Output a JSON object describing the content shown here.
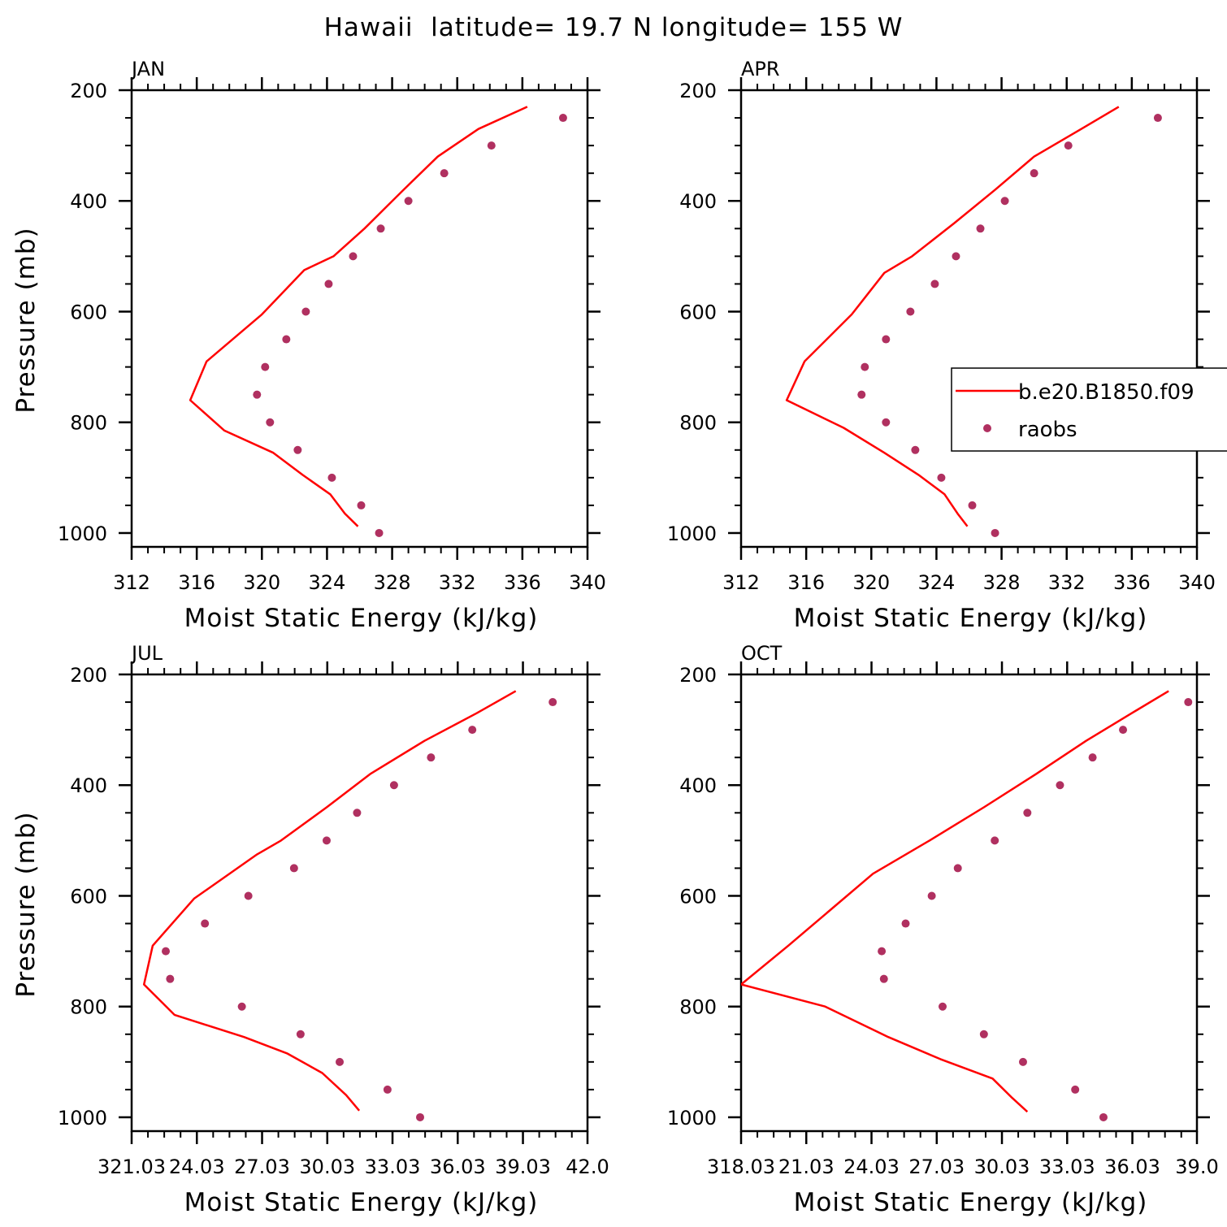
{
  "figure": {
    "title": "Hawaii  latitude= 19.7 N longitude= 155 W",
    "legend": {
      "model_label": "b.e20.B1850.f09",
      "obs_label": "raobs",
      "model_color": "#ff0000",
      "obs_color": "#b03060"
    }
  },
  "chart_data": [
    {
      "type": "line",
      "title": "JAN",
      "xlabel": "Moist Static Energy (kJ/kg)",
      "ylabel": "Pressure (mb)",
      "xlim": [
        312,
        340
      ],
      "x_ticks": [
        312,
        316,
        320,
        324,
        328,
        332,
        336,
        340
      ],
      "x_tick_labels": [
        "312",
        "316",
        "320",
        "324",
        "328",
        "332",
        "336",
        "340"
      ],
      "x_minor_step": 1,
      "ylim": [
        1025,
        200
      ],
      "y_ticks": [
        200,
        400,
        600,
        800,
        1000
      ],
      "y_tick_labels": [
        "200",
        "400",
        "600",
        "800",
        "1000"
      ],
      "y_minor_step": 50,
      "legend": false,
      "series": [
        {
          "name": "b.e20.B1850.f09",
          "kind": "line",
          "color": "#ff0000",
          "x": [
            336.3,
            333.3,
            330.8,
            328.7,
            326.3,
            324.4,
            322.6,
            320.0,
            316.6,
            315.6,
            317.7,
            320.7,
            322.5,
            324.2,
            325.1,
            325.9
          ],
          "y": [
            230,
            270,
            320,
            380,
            450,
            500,
            525,
            605,
            690,
            760,
            815,
            855,
            895,
            930,
            965,
            988
          ]
        },
        {
          "name": "raobs",
          "kind": "points",
          "color": "#b03060",
          "x": [
            338.5,
            334.1,
            331.2,
            329.0,
            327.3,
            325.6,
            324.1,
            322.7,
            321.5,
            320.2,
            319.7,
            320.5,
            322.2,
            324.3,
            326.1,
            327.2
          ],
          "y": [
            250,
            300,
            350,
            400,
            450,
            500,
            550,
            600,
            650,
            700,
            750,
            800,
            850,
            900,
            950,
            1000
          ]
        }
      ]
    },
    {
      "type": "line",
      "title": "APR",
      "xlabel": "Moist Static Energy (kJ/kg)",
      "ylabel": "",
      "xlim": [
        312,
        340
      ],
      "x_ticks": [
        312,
        316,
        320,
        324,
        328,
        332,
        336,
        340
      ],
      "x_tick_labels": [
        "312",
        "316",
        "320",
        "324",
        "328",
        "332",
        "336",
        "340"
      ],
      "x_minor_step": 1,
      "ylim": [
        1025,
        200
      ],
      "y_ticks": [
        200,
        400,
        600,
        800,
        1000
      ],
      "y_tick_labels": [
        "200",
        "400",
        "600",
        "800",
        "1000"
      ],
      "y_minor_step": 50,
      "legend": true,
      "series": [
        {
          "name": "b.e20.B1850.f09",
          "kind": "line",
          "color": "#ff0000",
          "x": [
            335.2,
            332.9,
            330.0,
            327.6,
            325.1,
            322.5,
            320.8,
            318.8,
            315.9,
            314.8,
            318.3,
            320.8,
            322.9,
            324.5,
            325.3,
            325.9
          ],
          "y": [
            230,
            270,
            320,
            380,
            440,
            500,
            530,
            605,
            690,
            760,
            810,
            855,
            895,
            930,
            965,
            988
          ]
        },
        {
          "name": "raobs",
          "kind": "points",
          "color": "#b03060",
          "x": [
            337.6,
            332.1,
            330.0,
            328.2,
            326.7,
            325.2,
            323.9,
            322.4,
            320.9,
            319.6,
            319.4,
            320.9,
            322.7,
            324.3,
            326.2,
            327.6
          ],
          "y": [
            250,
            300,
            350,
            400,
            450,
            500,
            550,
            600,
            650,
            700,
            750,
            800,
            850,
            900,
            950,
            1000
          ]
        }
      ]
    },
    {
      "type": "line",
      "title": "JUL",
      "xlabel": "Moist Static Energy (kJ/kg)",
      "ylabel": "Pressure (mb)",
      "xlim": [
        321.03,
        342.0
      ],
      "x_ticks": [
        321.03,
        324.03,
        327.03,
        330.03,
        333.03,
        336.03,
        339.03,
        342.0
      ],
      "x_tick_labels": [
        "321.03",
        "24.03",
        "27.03",
        "30.03",
        "33.03",
        "36.03",
        "39.03",
        "42.0"
      ],
      "x_minor_step": 0.75,
      "ylim": [
        1025,
        200
      ],
      "y_ticks": [
        200,
        400,
        600,
        800,
        1000
      ],
      "y_tick_labels": [
        "200",
        "400",
        "600",
        "800",
        "1000"
      ],
      "y_minor_step": 50,
      "legend": false,
      "series": [
        {
          "name": "b.e20.B1850.f09",
          "kind": "line",
          "color": "#ff0000",
          "x": [
            338.7,
            336.9,
            334.5,
            332.0,
            330.0,
            327.9,
            326.8,
            323.9,
            322.0,
            321.6,
            323.0,
            326.2,
            328.2,
            329.8,
            330.9,
            331.5
          ],
          "y": [
            230,
            270,
            320,
            380,
            440,
            500,
            525,
            605,
            690,
            760,
            815,
            855,
            885,
            920,
            960,
            988
          ]
        },
        {
          "name": "raobs",
          "kind": "points",
          "color": "#b03060",
          "x": [
            340.4,
            336.7,
            334.8,
            333.1,
            331.4,
            330.0,
            328.5,
            326.4,
            324.4,
            322.6,
            322.8,
            326.1,
            328.8,
            330.6,
            332.8,
            334.3
          ],
          "y": [
            250,
            300,
            350,
            400,
            450,
            500,
            550,
            600,
            650,
            700,
            750,
            800,
            850,
            900,
            950,
            1000
          ]
        }
      ]
    },
    {
      "type": "line",
      "title": "OCT",
      "xlabel": "Moist Static Energy (kJ/kg)",
      "ylabel": "",
      "xlim": [
        318.03,
        339.0
      ],
      "x_ticks": [
        318.03,
        321.03,
        324.03,
        327.03,
        330.03,
        333.03,
        336.03,
        339.0
      ],
      "x_tick_labels": [
        "318.03",
        "21.03",
        "24.03",
        "27.03",
        "30.03",
        "33.03",
        "36.03",
        "39.0"
      ],
      "x_minor_step": 0.75,
      "ylim": [
        1025,
        200
      ],
      "y_ticks": [
        200,
        400,
        600,
        800,
        1000
      ],
      "y_tick_labels": [
        "200",
        "400",
        "600",
        "800",
        "1000"
      ],
      "y_minor_step": 50,
      "legend": false,
      "series": [
        {
          "name": "b.e20.B1850.f09",
          "kind": "line",
          "color": "#ff0000",
          "x": [
            337.7,
            336.0,
            333.9,
            331.6,
            329.2,
            326.7,
            324.1,
            320.2,
            318.03,
            321.9,
            324.8,
            327.2,
            329.6,
            330.5,
            331.2
          ],
          "y": [
            230,
            270,
            320,
            380,
            440,
            500,
            560,
            690,
            760,
            800,
            855,
            895,
            930,
            965,
            990
          ]
        },
        {
          "name": "raobs",
          "kind": "points",
          "color": "#b03060",
          "x": [
            338.6,
            335.6,
            334.2,
            332.7,
            331.2,
            329.7,
            328.0,
            326.8,
            325.6,
            324.5,
            324.6,
            327.3,
            329.2,
            331.0,
            333.4,
            334.7
          ],
          "y": [
            250,
            300,
            350,
            400,
            450,
            500,
            550,
            600,
            650,
            700,
            750,
            800,
            850,
            900,
            950,
            1000
          ]
        }
      ]
    }
  ]
}
